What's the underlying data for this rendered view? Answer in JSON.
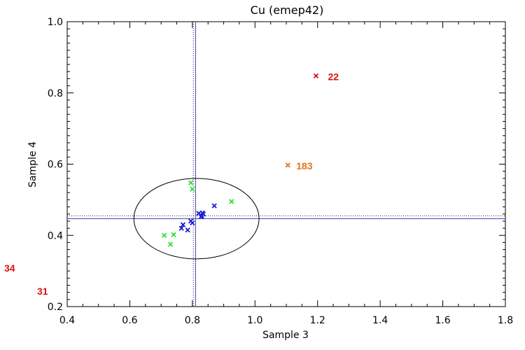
{
  "chart_data": {
    "type": "scatter",
    "title": "Cu (emep42)",
    "xlabel": "Sample 3",
    "ylabel": "Sample 4",
    "xlim": [
      0.4,
      1.8
    ],
    "ylim": [
      0.2,
      1.0
    ],
    "xticks": [
      "0.4",
      "0.6",
      "0.8",
      "1.0",
      "1.2",
      "1.4",
      "1.6",
      "1.8"
    ],
    "yticks": [
      "0.2",
      "0.4",
      "0.6",
      "0.8",
      "1.0"
    ],
    "grid": false,
    "reference_lines": {
      "solid_x": 0.81,
      "dotted_x": 0.803,
      "solid_y": 0.447,
      "dotted_y": 0.455
    },
    "ellipse": {
      "cx": 0.813,
      "cy": 0.447,
      "rx": 0.2,
      "ry": 0.113
    },
    "colors": {
      "blue": "#1a1ad6",
      "green": "#2fe02f",
      "red": "#dd1111",
      "orange": "#e0761a",
      "axis": "#000000",
      "ref_line": "#3a3ab0"
    },
    "series": [
      {
        "color": "#1a1ad6",
        "points": [
          [
            0.765,
            0.42
          ],
          [
            0.77,
            0.43
          ],
          [
            0.785,
            0.415
          ],
          [
            0.795,
            0.44
          ],
          [
            0.8,
            0.435
          ],
          [
            0.82,
            0.462
          ],
          [
            0.83,
            0.455
          ],
          [
            0.832,
            0.463
          ],
          [
            0.828,
            0.452
          ],
          [
            0.835,
            0.46
          ],
          [
            0.87,
            0.483
          ]
        ]
      },
      {
        "color": "#2fe02f",
        "points": [
          [
            0.71,
            0.4
          ],
          [
            0.73,
            0.375
          ],
          [
            0.74,
            0.402
          ],
          [
            0.795,
            0.548
          ],
          [
            0.8,
            0.53
          ],
          [
            0.925,
            0.495
          ]
        ]
      },
      {
        "color": "#dd1111",
        "points": [
          [
            1.195,
            0.848
          ]
        ],
        "labels": [
          "22"
        ]
      },
      {
        "color": "#e0761a",
        "points": [
          [
            1.105,
            0.597
          ]
        ],
        "labels": [
          "183"
        ]
      }
    ],
    "outside_labels": [
      {
        "text": "34",
        "color": "#dd1111"
      },
      {
        "text": "31",
        "color": "#dd1111"
      }
    ]
  }
}
